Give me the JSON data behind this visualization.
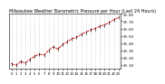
{
  "title": "Milwaukee Weather Barometric Pressure per Hour (Last 24 Hours)",
  "x_values": [
    0,
    1,
    2,
    3,
    4,
    5,
    6,
    7,
    8,
    9,
    10,
    11,
    12,
    13,
    14,
    15,
    16,
    17,
    18,
    19,
    20,
    21,
    22,
    23
  ],
  "y_values": [
    29.12,
    29.1,
    29.15,
    29.13,
    29.18,
    29.22,
    29.25,
    29.24,
    29.3,
    29.35,
    29.32,
    29.38,
    29.42,
    29.46,
    29.48,
    29.52,
    29.55,
    29.58,
    29.6,
    29.63,
    29.65,
    29.68,
    29.72,
    29.75
  ],
  "ylim": [
    29.05,
    29.8
  ],
  "yticks": [
    29.1,
    29.2,
    29.3,
    29.4,
    29.5,
    29.6,
    29.7,
    29.8
  ],
  "ytick_labels": [
    "29.10",
    "29.20",
    "29.30",
    "29.40",
    "29.50",
    "29.60",
    "29.70",
    "29.80"
  ],
  "x_tick_labels": [
    "0",
    "1",
    "2",
    "3",
    "4",
    "5",
    "6",
    "7",
    "8",
    "9",
    "10",
    "11",
    "12",
    "13",
    "14",
    "15",
    "16",
    "17",
    "18",
    "19",
    "20",
    "21",
    "22",
    "23"
  ],
  "line_color": "#dd0000",
  "marker_color": "#111111",
  "bg_color": "#ffffff",
  "grid_color": "#aaaaaa",
  "title_fontsize": 3.5,
  "tick_fontsize": 2.8,
  "line_width": 0.6,
  "marker_size": 1.2
}
